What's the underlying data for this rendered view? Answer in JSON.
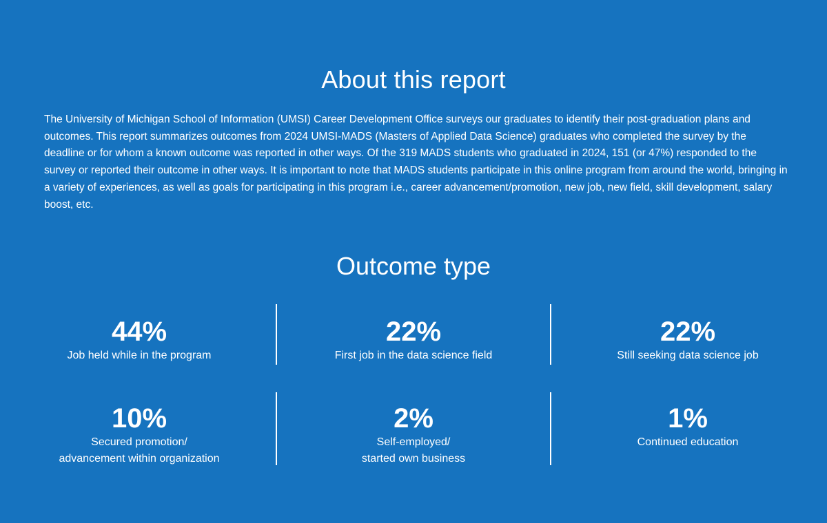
{
  "about": {
    "title": "About this report",
    "body": "The University of Michigan School of Information (UMSI) Career Development Office surveys our graduates to identify their post-graduation plans and outcomes. This report summarizes outcomes from 2024 UMSI-MADS (Masters of Applied Data Science) graduates who completed the survey by the deadline or for whom a known outcome was reported in other ways. Of the 319 MADS students who graduated in 2024, 151 (or 47%) responded to the survey or reported their outcome in other ways. It is important to note that MADS students participate in this online program from around the world, bringing in a variety of experiences, as well as goals for participating in this program i.e., career advancement/promotion, new job, new field, skill development, salary boost, etc."
  },
  "outcome": {
    "title": "Outcome type",
    "items": [
      {
        "percent": "44%",
        "label": "Job held while in the program"
      },
      {
        "percent": "22%",
        "label": "First job in the data science field"
      },
      {
        "percent": "22%",
        "label": "Still seeking data science job"
      },
      {
        "percent": "10%",
        "label": "Secured promotion/\nadvancement within organization"
      },
      {
        "percent": "2%",
        "label": "Self-employed/\nstarted own business"
      },
      {
        "percent": "1%",
        "label": "Continued education"
      }
    ]
  },
  "colors": {
    "background": "#1673bf",
    "text": "#ffffff"
  }
}
